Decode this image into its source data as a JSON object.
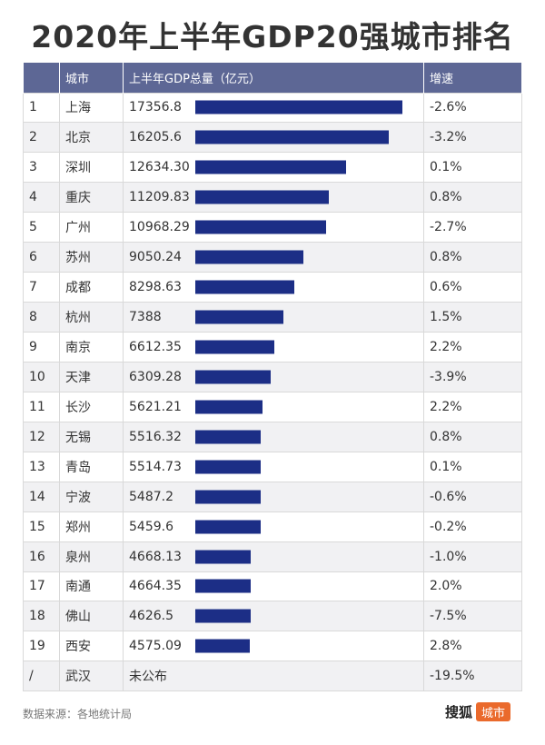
{
  "title": "2020年上半年GDP20强城市排名",
  "chart_data": {
    "type": "table",
    "title": "2020年上半年GDP20强城市排名",
    "columns": [
      "",
      "城市",
      "上半年GDP总量（亿元）",
      "增速"
    ],
    "max_value": 17356.8,
    "rows": [
      {
        "rank": "1",
        "city": "上海",
        "gdp": "17356.8",
        "value": 17356.8,
        "growth": "-2.6%"
      },
      {
        "rank": "2",
        "city": "北京",
        "gdp": "16205.6",
        "value": 16205.6,
        "growth": "-3.2%"
      },
      {
        "rank": "3",
        "city": "深圳",
        "gdp": "12634.30",
        "value": 12634.3,
        "growth": "0.1%"
      },
      {
        "rank": "4",
        "city": "重庆",
        "gdp": "11209.83",
        "value": 11209.83,
        "growth": "0.8%"
      },
      {
        "rank": "5",
        "city": "广州",
        "gdp": "10968.29",
        "value": 10968.29,
        "growth": "-2.7%"
      },
      {
        "rank": "6",
        "city": "苏州",
        "gdp": "9050.24",
        "value": 9050.24,
        "growth": "0.8%"
      },
      {
        "rank": "7",
        "city": "成都",
        "gdp": "8298.63",
        "value": 8298.63,
        "growth": "0.6%"
      },
      {
        "rank": "8",
        "city": "杭州",
        "gdp": "7388",
        "value": 7388,
        "growth": "1.5%"
      },
      {
        "rank": "9",
        "city": "南京",
        "gdp": "6612.35",
        "value": 6612.35,
        "growth": "2.2%"
      },
      {
        "rank": "10",
        "city": "天津",
        "gdp": "6309.28",
        "value": 6309.28,
        "growth": "-3.9%"
      },
      {
        "rank": "11",
        "city": "长沙",
        "gdp": "5621.21",
        "value": 5621.21,
        "growth": "2.2%"
      },
      {
        "rank": "12",
        "city": "无锡",
        "gdp": "5516.32",
        "value": 5516.32,
        "growth": "0.8%"
      },
      {
        "rank": "13",
        "city": "青岛",
        "gdp": "5514.73",
        "value": 5514.73,
        "growth": "0.1%"
      },
      {
        "rank": "14",
        "city": "宁波",
        "gdp": "5487.2",
        "value": 5487.2,
        "growth": "-0.6%"
      },
      {
        "rank": "15",
        "city": "郑州",
        "gdp": "5459.6",
        "value": 5459.6,
        "growth": "-0.2%"
      },
      {
        "rank": "16",
        "city": "泉州",
        "gdp": "4668.13",
        "value": 4668.13,
        "growth": "-1.0%"
      },
      {
        "rank": "17",
        "city": "南通",
        "gdp": "4664.35",
        "value": 4664.35,
        "growth": "2.0%"
      },
      {
        "rank": "18",
        "city": "佛山",
        "gdp": "4626.5",
        "value": 4626.5,
        "growth": "-7.5%"
      },
      {
        "rank": "19",
        "city": "西安",
        "gdp": "4575.09",
        "value": 4575.09,
        "growth": "2.8%"
      },
      {
        "rank": "/",
        "city": "武汉",
        "gdp": "未公布",
        "value": null,
        "growth": "-19.5%"
      }
    ],
    "bar_color": "#1c2e86"
  },
  "source": "数据来源：各地统计局",
  "brand": {
    "logo": "搜狐",
    "tag": "城市"
  }
}
